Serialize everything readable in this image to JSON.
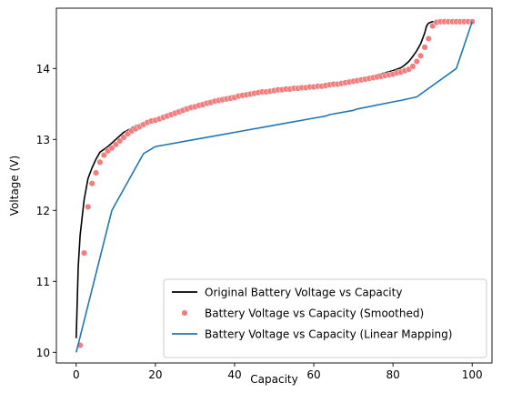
{
  "chart_data": {
    "type": "line",
    "title": "",
    "xlabel": "Capacity",
    "ylabel": "Voltage (V)",
    "xlim": [
      -5,
      105
    ],
    "ylim": [
      9.85,
      14.85
    ],
    "xticks": [
      0,
      20,
      40,
      60,
      80,
      100
    ],
    "yticks": [
      10,
      11,
      12,
      13,
      14
    ],
    "grid": false,
    "legend_position": "lower-right",
    "series": [
      {
        "name": "Original Battery Voltage vs Capacity",
        "kind": "line",
        "color": "#000000",
        "x": [
          0,
          0.5,
          1,
          1.5,
          2,
          3,
          4,
          5,
          6,
          7,
          8,
          9,
          10,
          11,
          12,
          13,
          14,
          15,
          16,
          17,
          18,
          19,
          20,
          22,
          24,
          26,
          28,
          30,
          32,
          34,
          36,
          38,
          40,
          42,
          44,
          46,
          48,
          50,
          52,
          54,
          56,
          58,
          60,
          62,
          64,
          66,
          68,
          70,
          72,
          74,
          76,
          78,
          80,
          82,
          83,
          84,
          85,
          86,
          87,
          88,
          88.5,
          89,
          90,
          91,
          92,
          94,
          96,
          98,
          100
        ],
        "y": [
          10.2,
          11.2,
          11.65,
          11.9,
          12.15,
          12.45,
          12.6,
          12.72,
          12.82,
          12.86,
          12.9,
          12.95,
          13.0,
          13.05,
          13.1,
          13.13,
          13.16,
          13.19,
          13.21,
          13.24,
          13.26,
          13.27,
          13.29,
          13.34,
          13.38,
          13.42,
          13.46,
          13.49,
          13.52,
          13.55,
          13.58,
          13.6,
          13.62,
          13.64,
          13.66,
          13.67,
          13.69,
          13.7,
          13.71,
          13.72,
          13.73,
          13.74,
          13.75,
          13.77,
          13.79,
          13.8,
          13.82,
          13.84,
          13.86,
          13.88,
          13.91,
          13.94,
          13.97,
          14.01,
          14.05,
          14.1,
          14.17,
          14.25,
          14.35,
          14.5,
          14.6,
          14.64,
          14.66,
          14.66,
          14.66,
          14.66,
          14.66,
          14.66,
          14.66
        ]
      },
      {
        "name": "Battery Voltage vs Capacity (Smoothed)",
        "kind": "scatter",
        "color": "#f47c7c",
        "x": [
          1,
          2,
          3,
          4,
          5,
          6,
          7,
          8,
          9,
          10,
          11,
          12,
          13,
          14,
          15,
          16,
          17,
          18,
          19,
          20,
          21,
          22,
          23,
          24,
          25,
          26,
          27,
          28,
          29,
          30,
          31,
          32,
          33,
          34,
          35,
          36,
          37,
          38,
          39,
          40,
          41,
          42,
          43,
          44,
          45,
          46,
          47,
          48,
          49,
          50,
          51,
          52,
          53,
          54,
          55,
          56,
          57,
          58,
          59,
          60,
          61,
          62,
          63,
          64,
          65,
          66,
          67,
          68,
          69,
          70,
          71,
          72,
          73,
          74,
          75,
          76,
          77,
          78,
          79,
          80,
          81,
          82,
          83,
          84,
          85,
          86,
          87,
          88,
          89,
          90,
          91,
          92,
          93,
          94,
          95,
          96,
          97,
          98,
          99,
          100
        ],
        "y": [
          10.1,
          11.4,
          12.05,
          12.38,
          12.53,
          12.68,
          12.78,
          12.84,
          12.88,
          12.93,
          12.98,
          13.03,
          13.08,
          13.12,
          13.15,
          13.18,
          13.21,
          13.24,
          13.26,
          13.27,
          13.29,
          13.31,
          13.33,
          13.35,
          13.37,
          13.39,
          13.41,
          13.43,
          13.45,
          13.46,
          13.48,
          13.49,
          13.51,
          13.52,
          13.54,
          13.55,
          13.56,
          13.57,
          13.58,
          13.59,
          13.61,
          13.62,
          13.63,
          13.64,
          13.65,
          13.66,
          13.67,
          13.67,
          13.68,
          13.69,
          13.7,
          13.7,
          13.71,
          13.71,
          13.72,
          13.72,
          13.73,
          13.73,
          13.74,
          13.74,
          13.75,
          13.75,
          13.76,
          13.77,
          13.78,
          13.78,
          13.79,
          13.8,
          13.81,
          13.82,
          13.83,
          13.84,
          13.85,
          13.86,
          13.87,
          13.88,
          13.89,
          13.9,
          13.91,
          13.92,
          13.94,
          13.95,
          13.97,
          13.99,
          14.03,
          14.1,
          14.18,
          14.3,
          14.42,
          14.6,
          14.65,
          14.66,
          14.66,
          14.66,
          14.66,
          14.66,
          14.66,
          14.66,
          14.66,
          14.66
        ]
      },
      {
        "name": "Battery Voltage vs Capacity (Linear Mapping)",
        "kind": "line",
        "color": "#1f77b4",
        "x": [
          0,
          9,
          17,
          20,
          30,
          40,
          50,
          60,
          63,
          64,
          70,
          71,
          80,
          82,
          86,
          96,
          100
        ],
        "y": [
          10.0,
          12.0,
          12.8,
          12.9,
          13.0,
          13.1,
          13.2,
          13.3,
          13.33,
          13.35,
          13.41,
          13.43,
          13.53,
          13.55,
          13.6,
          14.0,
          14.66
        ]
      }
    ]
  }
}
